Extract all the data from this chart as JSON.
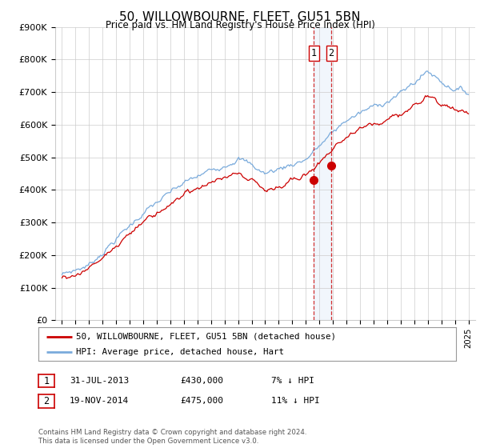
{
  "title": "50, WILLOWBOURNE, FLEET, GU51 5BN",
  "subtitle": "Price paid vs. HM Land Registry's House Price Index (HPI)",
  "legend_line1": "50, WILLOWBOURNE, FLEET, GU51 5BN (detached house)",
  "legend_line2": "HPI: Average price, detached house, Hart",
  "sale1_label": "1",
  "sale1_date": "31-JUL-2013",
  "sale1_price": "£430,000",
  "sale1_hpi": "7% ↓ HPI",
  "sale1_year": 2013.58,
  "sale1_value": 430000,
  "sale2_label": "2",
  "sale2_date": "19-NOV-2014",
  "sale2_price": "£475,000",
  "sale2_hpi": "11% ↓ HPI",
  "sale2_year": 2014.88,
  "sale2_value": 475000,
  "ylim": [
    0,
    900000
  ],
  "yticks": [
    0,
    100000,
    200000,
    300000,
    400000,
    500000,
    600000,
    700000,
    800000,
    900000
  ],
  "ytick_labels": [
    "£0",
    "£100K",
    "£200K",
    "£300K",
    "£400K",
    "£500K",
    "£600K",
    "£700K",
    "£800K",
    "£900K"
  ],
  "xlim_start": 1994.5,
  "xlim_end": 2025.5,
  "red_color": "#cc0000",
  "blue_color": "#7aabdc",
  "shade_color": "#c8dff5",
  "background_color": "#ffffff",
  "grid_color": "#cccccc",
  "footer": "Contains HM Land Registry data © Crown copyright and database right 2024.\nThis data is licensed under the Open Government Licence v3.0."
}
